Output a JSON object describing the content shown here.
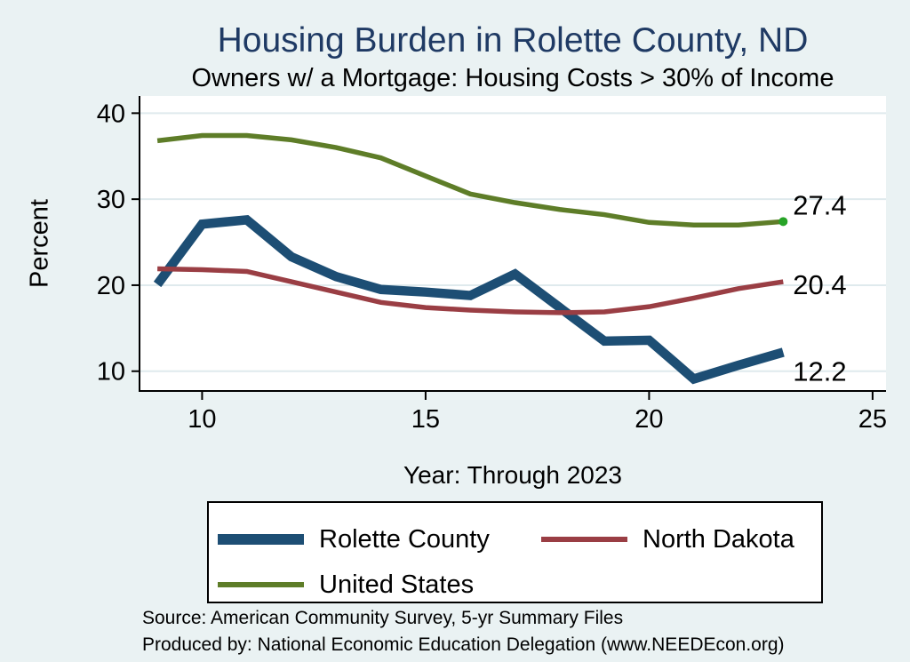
{
  "title": "Housing Burden in Rolette County, ND",
  "subtitle": "Owners w/ a Mortgage: Housing Costs > 30% of Income",
  "colors": {
    "background": "#eaf2f3",
    "plot_background": "#ffffff",
    "grid": "#dfeaed",
    "axis": "#000000",
    "title": "#1f3a64"
  },
  "chart_data": {
    "type": "line",
    "title": "Housing Burden in Rolette County, ND",
    "subtitle": "Owners w/ a Mortgage: Housing Costs > 30% of Income",
    "xlabel": "Year: Through 2023",
    "ylabel": "Percent",
    "x": [
      9,
      10,
      11,
      12,
      13,
      14,
      15,
      16,
      17,
      18,
      19,
      20,
      21,
      22,
      23
    ],
    "x_ticks": [
      10,
      15,
      20,
      25
    ],
    "y_ticks": [
      10,
      20,
      30,
      40
    ],
    "xlim": [
      8.6,
      25.3
    ],
    "ylim": [
      7.7,
      42.0
    ],
    "grid": "horizontal",
    "legend_position": "bottom",
    "series": [
      {
        "name": "Rolette County",
        "color": "#1d4e74",
        "width": 10.5,
        "legend_swatch_height": 12,
        "values": [
          20.1,
          27.1,
          27.6,
          23.3,
          21.0,
          19.5,
          19.2,
          18.8,
          21.3,
          17.4,
          13.5,
          13.6,
          9.1,
          10.7,
          12.2
        ],
        "end_label": "12.2",
        "end_label_dy": 21
      },
      {
        "name": "North Dakota",
        "color": "#9a3e44",
        "width": 5.5,
        "legend_swatch_height": 6,
        "values": [
          21.9,
          21.8,
          21.6,
          20.4,
          19.2,
          18.0,
          17.4,
          17.1,
          16.9,
          16.8,
          16.9,
          17.5,
          18.5,
          19.6,
          20.4
        ],
        "end_label": "20.4",
        "end_label_dy": 3
      },
      {
        "name": "United States",
        "color": "#5e7d28",
        "width": 5.5,
        "legend_swatch_height": 6,
        "values": [
          36.8,
          37.4,
          37.4,
          36.9,
          36.0,
          34.8,
          32.7,
          30.6,
          29.6,
          28.8,
          28.2,
          27.3,
          27.0,
          27.0,
          27.4
        ],
        "end_label": "27.4",
        "end_label_dy": -19,
        "end_marker": true,
        "end_marker_color": "#27a327"
      }
    ]
  },
  "notes": {
    "line1": "Source: American Community Survey, 5-yr Summary Files",
    "line2": "Produced by: National Economic Education Delegation (www.NEEDEcon.org)"
  }
}
